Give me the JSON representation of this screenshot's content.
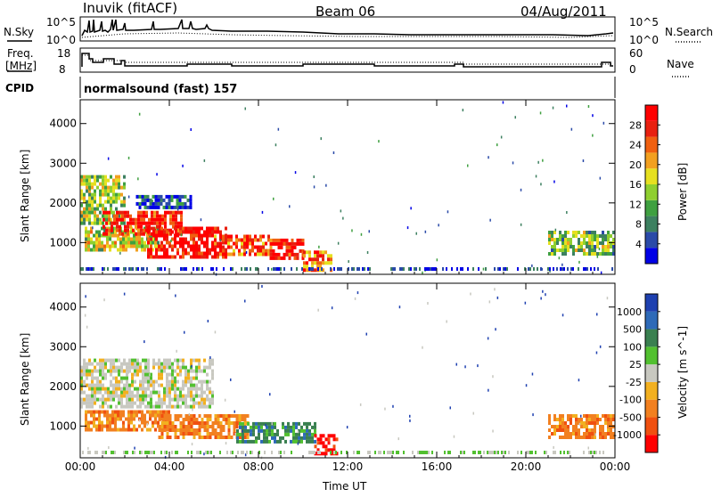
{
  "header": {
    "title": "Inuvik (fitACF)",
    "beam": "Beam 06",
    "date": "04/Aug/2011"
  },
  "noise_panel": {
    "left_label": "N.Sky",
    "left_ticks": [
      "10^5",
      "10^0"
    ],
    "right_label": "N.Search",
    "right_ticks": [
      "10^5",
      "10^0"
    ]
  },
  "freq_panel": {
    "left_label_line1": "Freq.",
    "left_label_line2": "[MHz]",
    "left_ticks": [
      "18",
      "8"
    ],
    "right_label": "Nave",
    "right_ticks": [
      "60",
      "0"
    ]
  },
  "cpid_panel": {
    "label": "CPID",
    "program": "normalsound (fast) 157"
  },
  "chart_data": [
    {
      "type": "heatmap",
      "name": "power",
      "ylabel": "Slant Range [km]",
      "xlabel": "",
      "x_ticks": [
        "00:00",
        "04:00",
        "08:00",
        "12:00",
        "16:00",
        "20:00",
        "00:00"
      ],
      "y_ticks": [
        1000,
        2000,
        3000,
        4000
      ],
      "ylim": [
        200,
        4600
      ],
      "xlim_hours": [
        0,
        24
      ],
      "colorbar": {
        "label": "Power [dB]",
        "ticks": [
          "4",
          "8",
          "12",
          "16",
          "20",
          "24",
          "28"
        ],
        "colors": [
          "#0000e6",
          "#2a4aa8",
          "#3d8060",
          "#3fa040",
          "#8fcf2f",
          "#e6e020",
          "#f2a020",
          "#f06010",
          "#e82010",
          "#ff0000"
        ]
      },
      "regions": [
        {
          "t0": 0.0,
          "t1": 2.0,
          "r0": 1500,
          "r1": 2700,
          "level": 0.45
        },
        {
          "t0": 0.2,
          "t1": 3.5,
          "r0": 800,
          "r1": 1400,
          "level": 0.5
        },
        {
          "t0": 1.0,
          "t1": 4.5,
          "r0": 1200,
          "r1": 1800,
          "level": 0.9
        },
        {
          "t0": 3.0,
          "t1": 6.5,
          "r0": 600,
          "r1": 1400,
          "level": 0.95
        },
        {
          "t0": 6.0,
          "t1": 8.5,
          "r0": 700,
          "r1": 1200,
          "level": 0.8
        },
        {
          "t0": 8.5,
          "t1": 10.0,
          "r0": 600,
          "r1": 1100,
          "level": 0.9
        },
        {
          "t0": 10.0,
          "t1": 11.3,
          "r0": 300,
          "r1": 800,
          "level": 0.75
        },
        {
          "t0": 21.0,
          "t1": 24.0,
          "r0": 700,
          "r1": 1300,
          "level": 0.4
        },
        {
          "t0": 2.5,
          "t1": 5.0,
          "r0": 1900,
          "r1": 2200,
          "level": 0.15
        }
      ]
    },
    {
      "type": "heatmap",
      "name": "velocity",
      "ylabel": "Slant Range [km]",
      "xlabel": "Time UT",
      "x_ticks": [
        "00:00",
        "04:00",
        "08:00",
        "12:00",
        "16:00",
        "20:00",
        "00:00"
      ],
      "y_ticks": [
        1000,
        2000,
        3000,
        4000
      ],
      "ylim": [
        200,
        4600
      ],
      "xlim_hours": [
        0,
        24
      ],
      "colorbar": {
        "label": "Velocity [m s^-1]",
        "ticks": [
          "1000",
          "500",
          "100",
          "25",
          "-25",
          "-100",
          "-500",
          "-1000"
        ],
        "colors": [
          "#1e40b0",
          "#2e6ab8",
          "#3a8050",
          "#52c030",
          "#c8c8c0",
          "#f2b020",
          "#f28020",
          "#f05010",
          "#ff0000"
        ]
      },
      "regions": [
        {
          "t0": 0.0,
          "t1": 6.0,
          "r0": 1500,
          "r1": 2700,
          "level": "gray"
        },
        {
          "t0": 0.2,
          "t1": 4.0,
          "r0": 900,
          "r1": 1400,
          "level": "orange"
        },
        {
          "t0": 3.5,
          "t1": 7.5,
          "r0": 700,
          "r1": 1300,
          "level": "orange"
        },
        {
          "t0": 7.0,
          "t1": 10.5,
          "r0": 600,
          "r1": 1100,
          "level": "green"
        },
        {
          "t0": 10.5,
          "t1": 11.5,
          "r0": 300,
          "r1": 800,
          "level": "red"
        },
        {
          "t0": 21.0,
          "t1": 24.0,
          "r0": 700,
          "r1": 1300,
          "level": "orange"
        }
      ]
    }
  ]
}
